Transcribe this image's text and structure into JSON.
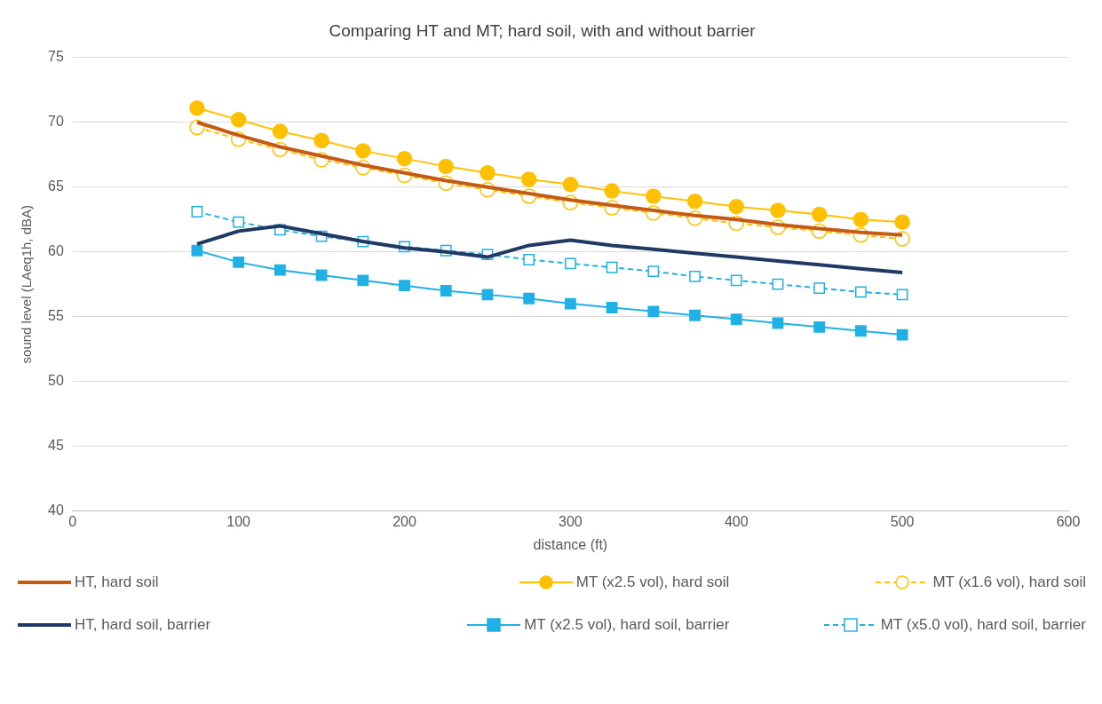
{
  "chart_data": {
    "type": "line",
    "title": "Comparing HT and MT; hard soil, with and without barrier",
    "xlabel": "distance (ft)",
    "ylabel": "sound level (LAeq1h, dBA)",
    "x": [
      75,
      100,
      125,
      150,
      175,
      200,
      225,
      250,
      275,
      300,
      325,
      350,
      375,
      400,
      425,
      450,
      475,
      500
    ],
    "xlim": [
      0,
      600
    ],
    "xticks": [
      0,
      100,
      200,
      300,
      400,
      500,
      600
    ],
    "ylim": [
      40,
      75
    ],
    "yticks": [
      40,
      45,
      50,
      55,
      60,
      65,
      70,
      75
    ],
    "grid": "y",
    "legend": "bottom",
    "series": [
      {
        "name": "HT, hard soil",
        "color": "#c55a11",
        "marker": "none",
        "line_style": "solid",
        "values": [
          70.0,
          69.0,
          68.1,
          67.4,
          66.7,
          66.1,
          65.5,
          65.0,
          64.5,
          64.0,
          63.6,
          63.2,
          62.8,
          62.5,
          62.1,
          61.8,
          61.5,
          61.3
        ]
      },
      {
        "name": "MT (x2.5 vol), hard soil",
        "color": "#ffc000",
        "marker": "circle",
        "line_style": "solid",
        "values": [
          71.1,
          70.2,
          69.3,
          68.6,
          67.8,
          67.2,
          66.6,
          66.1,
          65.6,
          65.2,
          64.7,
          64.3,
          63.9,
          63.5,
          63.2,
          62.9,
          62.5,
          62.3
        ]
      },
      {
        "name": "MT (x1.6 vol), hard soil",
        "color": "#ffc000",
        "marker": "circle",
        "line_style": "dashed",
        "values": [
          69.6,
          68.7,
          67.9,
          67.1,
          66.5,
          65.9,
          65.3,
          64.8,
          64.3,
          63.8,
          63.4,
          63.0,
          62.6,
          62.2,
          61.9,
          61.6,
          61.3,
          61.0
        ]
      },
      {
        "name": "HT, hard soil, barrier",
        "color": "#203864",
        "marker": "none",
        "line_style": "solid",
        "values": [
          60.6,
          61.6,
          62.0,
          61.4,
          60.8,
          60.3,
          60.0,
          59.6,
          60.5,
          60.9,
          60.5,
          60.2,
          59.9,
          59.6,
          59.3,
          59.0,
          58.7,
          58.4
        ]
      },
      {
        "name": "MT (x2.5 vol), hard soil, barrier",
        "color": "#1fb1e6",
        "marker": "square",
        "line_style": "solid",
        "values": [
          60.1,
          59.2,
          58.6,
          58.2,
          57.8,
          57.4,
          57.0,
          56.7,
          56.4,
          56.0,
          55.7,
          55.4,
          55.1,
          54.8,
          54.5,
          54.2,
          53.9,
          53.6
        ]
      },
      {
        "name": "MT (x5.0 vol), hard soil, barrier",
        "color": "#1fb1e6",
        "marker": "square",
        "line_style": "dashed",
        "values": [
          63.1,
          62.3,
          61.7,
          61.2,
          60.8,
          60.4,
          60.1,
          59.8,
          59.4,
          59.1,
          58.8,
          58.5,
          58.1,
          57.8,
          57.5,
          57.2,
          56.9,
          56.7
        ]
      }
    ]
  }
}
